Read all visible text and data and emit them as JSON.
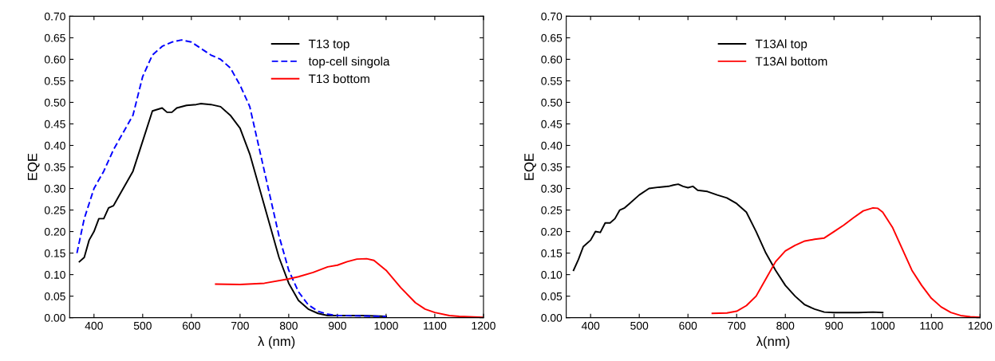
{
  "chart_data": [
    {
      "type": "line",
      "xlabel": "λ (nm)",
      "ylabel": "EQE",
      "xlim": [
        350,
        1200
      ],
      "ylim": [
        0,
        0.7
      ],
      "xticks": [
        400,
        500,
        600,
        700,
        800,
        900,
        1000,
        1100,
        1200
      ],
      "yticks": [
        {
          "value": 0,
          "label": "0.00"
        },
        {
          "value": 0.05,
          "label": "0.05"
        },
        {
          "value": 0.1,
          "label": "0.10"
        },
        {
          "value": 0.15,
          "label": "0.15"
        },
        {
          "value": 0.2,
          "label": "0.20"
        },
        {
          "value": 0.25,
          "label": "0.25"
        },
        {
          "value": 0.3,
          "label": "0.30"
        },
        {
          "value": 0.35,
          "label": "0.35"
        },
        {
          "value": 0.4,
          "label": "0.40"
        },
        {
          "value": 0.45,
          "label": "0.45"
        },
        {
          "value": 0.5,
          "label": "0.50"
        },
        {
          "value": 0.55,
          "label": "0.55"
        },
        {
          "value": 0.6,
          "label": "0.60"
        },
        {
          "value": 0.65,
          "label": "0.65"
        },
        {
          "value": 0.7,
          "label": "0.70"
        }
      ],
      "grid": false,
      "legend": "top right",
      "series": [
        {
          "name": "T13 top",
          "color": "#000000",
          "line_style": "solid",
          "x": [
            370,
            380,
            390,
            400,
            410,
            420,
            430,
            440,
            450,
            460,
            480,
            500,
            520,
            540,
            550,
            560,
            570,
            590,
            610,
            620,
            640,
            660,
            680,
            700,
            720,
            740,
            760,
            780,
            800,
            820,
            840,
            860,
            880,
            900,
            950,
            1000
          ],
          "values": [
            0.13,
            0.14,
            0.18,
            0.2,
            0.23,
            0.23,
            0.255,
            0.26,
            0.28,
            0.3,
            0.34,
            0.41,
            0.48,
            0.487,
            0.477,
            0.477,
            0.487,
            0.493,
            0.495,
            0.497,
            0.495,
            0.49,
            0.47,
            0.44,
            0.38,
            0.3,
            0.22,
            0.14,
            0.08,
            0.04,
            0.02,
            0.01,
            0.005,
            0.005,
            0.005,
            0.003
          ]
        },
        {
          "name": "top-cell singola",
          "color": "#0000ff",
          "line_style": "dashed",
          "x": [
            365,
            380,
            400,
            420,
            440,
            460,
            480,
            500,
            520,
            540,
            560,
            580,
            600,
            620,
            640,
            660,
            680,
            700,
            720,
            740,
            760,
            780,
            800,
            820,
            840,
            860,
            880,
            900,
            950,
            1000
          ],
          "values": [
            0.15,
            0.23,
            0.3,
            0.34,
            0.39,
            0.43,
            0.47,
            0.56,
            0.61,
            0.63,
            0.64,
            0.645,
            0.64,
            0.625,
            0.61,
            0.6,
            0.58,
            0.54,
            0.49,
            0.39,
            0.29,
            0.19,
            0.11,
            0.06,
            0.03,
            0.015,
            0.008,
            0.005,
            0.004,
            0.003
          ]
        },
        {
          "name": "T13 bottom",
          "color": "#ff0000",
          "line_style": "solid",
          "x": [
            650,
            700,
            750,
            800,
            820,
            850,
            880,
            900,
            920,
            940,
            960,
            975,
            1000,
            1030,
            1060,
            1080,
            1100,
            1130,
            1150,
            1200
          ],
          "values": [
            0.078,
            0.077,
            0.08,
            0.09,
            0.095,
            0.105,
            0.118,
            0.122,
            0.13,
            0.136,
            0.137,
            0.133,
            0.11,
            0.07,
            0.035,
            0.02,
            0.012,
            0.005,
            0.003,
            0.001
          ]
        }
      ]
    },
    {
      "type": "line",
      "xlabel": "λ(nm)",
      "ylabel": "EQE",
      "xlim": [
        350,
        1200
      ],
      "ylim": [
        0,
        0.7
      ],
      "xticks": [
        400,
        500,
        600,
        700,
        800,
        900,
        1000,
        1100,
        1200
      ],
      "yticks": [
        {
          "value": 0,
          "label": "0.00"
        },
        {
          "value": 0.05,
          "label": "0.05"
        },
        {
          "value": 0.1,
          "label": "0.10"
        },
        {
          "value": 0.15,
          "label": "0.15"
        },
        {
          "value": 0.2,
          "label": "0.20"
        },
        {
          "value": 0.25,
          "label": "0.25"
        },
        {
          "value": 0.3,
          "label": "0.30"
        },
        {
          "value": 0.35,
          "label": "0.35"
        },
        {
          "value": 0.4,
          "label": "0.40"
        },
        {
          "value": 0.45,
          "label": "0.45"
        },
        {
          "value": 0.5,
          "label": "0.50"
        },
        {
          "value": 0.55,
          "label": "0.55"
        },
        {
          "value": 0.6,
          "label": "0.60"
        },
        {
          "value": 0.65,
          "label": "0.65"
        },
        {
          "value": 0.7,
          "label": "0.70"
        }
      ],
      "grid": false,
      "legend": "top",
      "series": [
        {
          "name": "T13Al top",
          "color": "#000000",
          "line_style": "solid",
          "x": [
            365,
            375,
            385,
            400,
            410,
            420,
            430,
            440,
            450,
            460,
            470,
            480,
            500,
            520,
            540,
            560,
            570,
            580,
            590,
            600,
            610,
            620,
            640,
            660,
            680,
            700,
            720,
            740,
            760,
            780,
            800,
            820,
            840,
            860,
            880,
            900,
            950,
            980,
            1000
          ],
          "values": [
            0.11,
            0.135,
            0.165,
            0.18,
            0.2,
            0.198,
            0.22,
            0.22,
            0.23,
            0.25,
            0.255,
            0.265,
            0.285,
            0.3,
            0.303,
            0.305,
            0.308,
            0.31,
            0.305,
            0.302,
            0.305,
            0.296,
            0.293,
            0.285,
            0.278,
            0.265,
            0.245,
            0.2,
            0.15,
            0.11,
            0.075,
            0.05,
            0.03,
            0.02,
            0.013,
            0.012,
            0.012,
            0.013,
            0.012
          ]
        },
        {
          "name": "T13Al bottom",
          "color": "#ff0000",
          "line_style": "solid",
          "x": [
            650,
            680,
            700,
            720,
            740,
            760,
            780,
            800,
            820,
            840,
            860,
            880,
            900,
            920,
            940,
            960,
            980,
            990,
            1000,
            1020,
            1040,
            1060,
            1080,
            1100,
            1120,
            1140,
            1160,
            1180,
            1200
          ],
          "values": [
            0.01,
            0.011,
            0.015,
            0.028,
            0.05,
            0.09,
            0.13,
            0.155,
            0.168,
            0.178,
            0.182,
            0.185,
            0.2,
            0.215,
            0.232,
            0.248,
            0.255,
            0.254,
            0.245,
            0.21,
            0.16,
            0.11,
            0.075,
            0.045,
            0.025,
            0.012,
            0.005,
            0.002,
            0.001
          ]
        }
      ]
    }
  ]
}
